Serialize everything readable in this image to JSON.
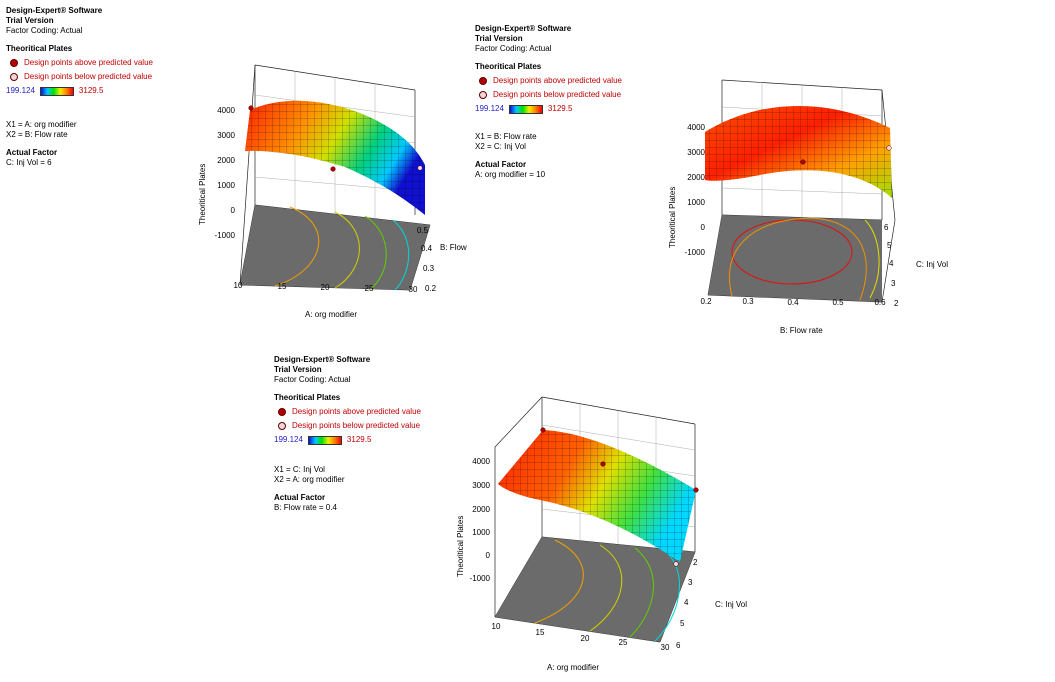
{
  "legend": {
    "software": "Design-Expert® Software",
    "version": "Trial Version",
    "coding": "Factor Coding: Actual",
    "response": "Theoritical Plates",
    "above": "Design points above predicted value",
    "below": "Design points below predicted value",
    "min": "199.124",
    "max": "3129.5",
    "actual_factor_title": "Actual Factor"
  },
  "colors": {
    "above": "#b00000",
    "below": "#f3d6d6",
    "min_text": "#2020c0",
    "max_text": "#c00000",
    "floor": "#6b6b6b"
  },
  "chart_data": [
    {
      "type": "surface",
      "x1_line": "X1 = A: org modifier",
      "x2_line": "X2 = B: Flow rate",
      "actual": "C: Inj Vol = 6",
      "zlabel": "Theoritical Plates",
      "z_ticks": [
        "4000",
        "3000",
        "2000",
        "1000",
        "0",
        "-1000"
      ],
      "xlabel": "A: org modifier",
      "x_ticks": [
        "10",
        "15",
        "20",
        "25",
        "30"
      ],
      "ylabel": "B: Flow",
      "y_ticks": [
        "0.2",
        "0.3",
        "0.4",
        "0.5"
      ],
      "xlim": [
        10,
        30
      ],
      "ylim": [
        0.2,
        0.5
      ],
      "zlim": [
        -1000,
        4000
      ]
    },
    {
      "type": "surface",
      "x1_line": "X1 = B: Flow rate",
      "x2_line": "X2 = C: Inj Vol",
      "actual": "A: org modifier = 10",
      "zlabel": "Theoritical Plates",
      "z_ticks": [
        "4000",
        "3000",
        "2000",
        "1000",
        "0",
        "-1000"
      ],
      "xlabel": "B: Flow rate",
      "x_ticks": [
        "0.2",
        "0.3",
        "0.4",
        "0.5",
        "0.6"
      ],
      "ylabel": "C: Inj Vol",
      "y_ticks": [
        "2",
        "3",
        "4",
        "5",
        "6"
      ],
      "xlim": [
        0.2,
        0.6
      ],
      "ylim": [
        2,
        6
      ],
      "zlim": [
        -1000,
        4000
      ]
    },
    {
      "type": "surface",
      "x1_line": "X1 = C: Inj Vol",
      "x2_line": "X2 = A: org modifier",
      "actual": "B: Flow rate = 0.4",
      "zlabel": "Theoritical Plates",
      "z_ticks": [
        "4000",
        "3000",
        "2000",
        "1000",
        "0",
        "-1000"
      ],
      "xlabel": "A: org modifier",
      "x_ticks": [
        "10",
        "15",
        "20",
        "25",
        "30"
      ],
      "ylabel": "C: Inj Vol",
      "y_ticks": [
        "6",
        "5",
        "4",
        "3",
        "2"
      ],
      "xlim": [
        10,
        30
      ],
      "ylim": [
        2,
        6
      ],
      "zlim": [
        -1000,
        4000
      ]
    }
  ]
}
